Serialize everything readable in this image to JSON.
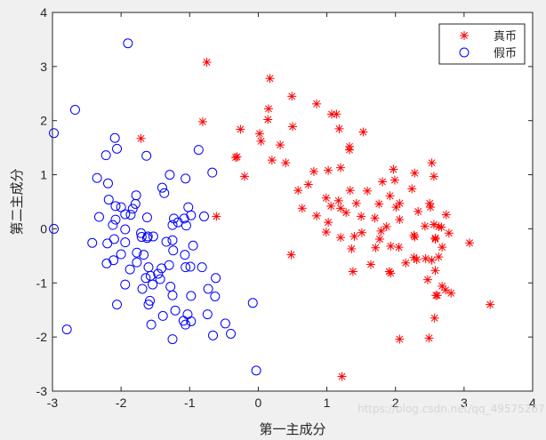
{
  "chart_data": {
    "type": "scatter",
    "xlabel": "第一主成分",
    "ylabel": "第二主成分",
    "xlim": [
      -3,
      4
    ],
    "ylim": [
      -3,
      4
    ],
    "xticks": [
      "-3",
      "-2",
      "-1",
      "0",
      "1",
      "2",
      "3",
      "4"
    ],
    "yticks": [
      "-3",
      "-2",
      "-1",
      "0",
      "1",
      "2",
      "3",
      "4"
    ],
    "grid": false,
    "legend_position": "top-right",
    "watermark": "https://blog.csdn.net/qq_49575267",
    "series": [
      {
        "name": "真币",
        "marker": "asterisk",
        "color": "#ff0000",
        "points": [
          [
            -0.75,
            3.08
          ],
          [
            0.17,
            2.78
          ],
          [
            0.49,
            2.45
          ],
          [
            0.85,
            2.31
          ],
          [
            1.07,
            2.12
          ],
          [
            1.14,
            2.12
          ],
          [
            0.15,
            2.22
          ],
          [
            0.14,
            2.02
          ],
          [
            -0.81,
            1.98
          ],
          [
            0.02,
            1.76
          ],
          [
            0.5,
            1.89
          ],
          [
            1.18,
            1.85
          ],
          [
            1.53,
            1.79
          ],
          [
            -0.26,
            1.84
          ],
          [
            0.04,
            1.62
          ],
          [
            0.32,
            1.55
          ],
          [
            1.33,
            1.52
          ],
          [
            1.33,
            1.46
          ],
          [
            -0.33,
            1.32
          ],
          [
            -0.31,
            1.33
          ],
          [
            0.2,
            1.27
          ],
          [
            0.4,
            1.22
          ],
          [
            -1.71,
            1.67
          ],
          [
            1.2,
            1.13
          ],
          [
            1.02,
            1.08
          ],
          [
            -0.2,
            0.97
          ],
          [
            0.81,
            1.06
          ],
          [
            1.97,
            1.1
          ],
          [
            2.28,
            1.03
          ],
          [
            2.53,
            1.22
          ],
          [
            2.56,
            0.97
          ],
          [
            1.99,
            0.9
          ],
          [
            1.81,
            0.87
          ],
          [
            0.73,
            0.82
          ],
          [
            0.58,
            0.71
          ],
          [
            1.34,
            0.71
          ],
          [
            1.59,
            0.7
          ],
          [
            1.92,
            0.61
          ],
          [
            2.24,
            0.74
          ],
          [
            2.06,
            0.47
          ],
          [
            0.99,
            0.57
          ],
          [
            1.17,
            0.52
          ],
          [
            1.43,
            0.47
          ],
          [
            2.5,
            0.47
          ],
          [
            2.51,
            0.4
          ],
          [
            0.64,
            0.38
          ],
          [
            1.06,
            0.42
          ],
          [
            1.2,
            0.38
          ],
          [
            1.76,
            0.46
          ],
          [
            2.01,
            0.4
          ],
          [
            2.33,
            0.32
          ],
          [
            2.74,
            0.26
          ],
          [
            0.85,
            0.24
          ],
          [
            1.28,
            0.3
          ],
          [
            1.5,
            0.23
          ],
          [
            1.7,
            0.2
          ],
          [
            2.06,
            0.17
          ],
          [
            -0.61,
            0.23
          ],
          [
            2.56,
            0.08
          ],
          [
            2.63,
            0.04
          ],
          [
            1.02,
            0.12
          ],
          [
            2.43,
            0.05
          ],
          [
            2.67,
            0.03
          ],
          [
            1.87,
            0.04
          ],
          [
            0.99,
            -0.06
          ],
          [
            1.51,
            -0.07
          ],
          [
            1.79,
            -0.04
          ],
          [
            2.27,
            -0.12
          ],
          [
            2.78,
            -0.08
          ],
          [
            1.4,
            -0.14
          ],
          [
            1.77,
            -0.19
          ],
          [
            1.2,
            -0.16
          ],
          [
            2.28,
            -0.15
          ],
          [
            2.58,
            -0.17
          ],
          [
            3.08,
            -0.26
          ],
          [
            2.58,
            -0.19
          ],
          [
            1.93,
            -0.32
          ],
          [
            2.05,
            -0.34
          ],
          [
            2.68,
            -0.34
          ],
          [
            1.71,
            -0.35
          ],
          [
            1.36,
            -0.37
          ],
          [
            2.27,
            -0.53
          ],
          [
            2.31,
            -0.57
          ],
          [
            2.44,
            -0.55
          ],
          [
            0.48,
            -0.48
          ],
          [
            1.64,
            -0.66
          ],
          [
            2.15,
            -0.63
          ],
          [
            2.53,
            -0.58
          ],
          [
            2.63,
            -0.52
          ],
          [
            1.38,
            -0.79
          ],
          [
            1.93,
            -0.82
          ],
          [
            1.91,
            -0.79
          ],
          [
            2.58,
            -0.77
          ],
          [
            2.47,
            -0.94
          ],
          [
            2.68,
            -1.06
          ],
          [
            2.73,
            -1.13
          ],
          [
            2.81,
            -1.19
          ],
          [
            2.59,
            -1.23
          ],
          [
            2.61,
            -1.23
          ],
          [
            3.38,
            -1.4
          ],
          [
            2.57,
            -1.65
          ],
          [
            2.49,
            -2.02
          ],
          [
            2.06,
            -2.04
          ],
          [
            1.22,
            -2.73
          ]
        ]
      },
      {
        "name": "假币",
        "marker": "circle",
        "color": "#0000ff",
        "points": [
          [
            -1.9,
            3.43
          ],
          [
            -2.67,
            2.2
          ],
          [
            -2.98,
            1.77
          ],
          [
            -2.09,
            1.68
          ],
          [
            -2.06,
            1.48
          ],
          [
            -0.87,
            1.46
          ],
          [
            -1.63,
            1.35
          ],
          [
            -2.22,
            1.36
          ],
          [
            -1.29,
            1.0
          ],
          [
            -0.67,
            1.04
          ],
          [
            -2.35,
            0.94
          ],
          [
            -2.19,
            0.84
          ],
          [
            -1.06,
            0.93
          ],
          [
            -2.18,
            0.54
          ],
          [
            -1.4,
            0.76
          ],
          [
            -1.78,
            0.62
          ],
          [
            -1.79,
            0.46
          ],
          [
            -1.37,
            0.66
          ],
          [
            -2.08,
            0.42
          ],
          [
            -1.02,
            0.4
          ],
          [
            -2.0,
            0.4
          ],
          [
            -1.83,
            0.37
          ],
          [
            -1.86,
            0.26
          ],
          [
            -1.94,
            0.27
          ],
          [
            -2.32,
            0.22
          ],
          [
            -2.08,
            0.17
          ],
          [
            -1.62,
            0.21
          ],
          [
            -1.23,
            0.19
          ],
          [
            -1.08,
            0.19
          ],
          [
            -0.98,
            0.25
          ],
          [
            -0.79,
            0.23
          ],
          [
            -2.98,
            0.0
          ],
          [
            -2.12,
            0.07
          ],
          [
            -1.17,
            0.12
          ],
          [
            -1.25,
            0.07
          ],
          [
            -1.05,
            0.06
          ],
          [
            -1.94,
            -0.01
          ],
          [
            -1.71,
            -0.08
          ],
          [
            -1.7,
            -0.15
          ],
          [
            -1.61,
            -0.14
          ],
          [
            -1.53,
            -0.14
          ],
          [
            -1.62,
            -0.17
          ],
          [
            -2.1,
            -0.19
          ],
          [
            -1.34,
            -0.24
          ],
          [
            -1.25,
            -0.21
          ],
          [
            -2.42,
            -0.26
          ],
          [
            -2.2,
            -0.27
          ],
          [
            -1.94,
            -0.25
          ],
          [
            -0.95,
            -0.31
          ],
          [
            -1.24,
            -0.4
          ],
          [
            -2.0,
            -0.47
          ],
          [
            -1.77,
            -0.44
          ],
          [
            -1.67,
            -0.48
          ],
          [
            -1.07,
            -0.48
          ],
          [
            -2.11,
            -0.58
          ],
          [
            -2.21,
            -0.64
          ],
          [
            -1.77,
            -0.62
          ],
          [
            -1.3,
            -0.67
          ],
          [
            -0.99,
            -0.7
          ],
          [
            -1.06,
            -0.71
          ],
          [
            -0.82,
            -0.71
          ],
          [
            -1.6,
            -0.71
          ],
          [
            -1.87,
            -0.75
          ],
          [
            -1.41,
            -0.73
          ],
          [
            -1.46,
            -0.83
          ],
          [
            -1.57,
            -0.87
          ],
          [
            -1.64,
            -0.91
          ],
          [
            -0.62,
            -0.91
          ],
          [
            -1.43,
            -0.93
          ],
          [
            -1.54,
            -1.03
          ],
          [
            -1.94,
            -1.03
          ],
          [
            -1.28,
            -1.07
          ],
          [
            -1.69,
            -1.11
          ],
          [
            -0.98,
            -1.24
          ],
          [
            -0.73,
            -1.11
          ],
          [
            -0.63,
            -1.25
          ],
          [
            -1.25,
            -1.23
          ],
          [
            -1.58,
            -1.33
          ],
          [
            -1.6,
            -1.4
          ],
          [
            -2.06,
            -1.4
          ],
          [
            -0.08,
            -1.37
          ],
          [
            -1.21,
            -1.51
          ],
          [
            -0.74,
            -1.58
          ],
          [
            -1.39,
            -1.61
          ],
          [
            -1.03,
            -1.58
          ],
          [
            -1.09,
            -1.7
          ],
          [
            -1.06,
            -1.77
          ],
          [
            -0.98,
            -1.71
          ],
          [
            -1.56,
            -1.77
          ],
          [
            -0.48,
            -1.75
          ],
          [
            -2.79,
            -1.86
          ],
          [
            -0.66,
            -1.97
          ],
          [
            -1.25,
            -2.04
          ],
          [
            -0.4,
            -1.94
          ],
          [
            -0.03,
            -2.62
          ]
        ]
      }
    ]
  }
}
